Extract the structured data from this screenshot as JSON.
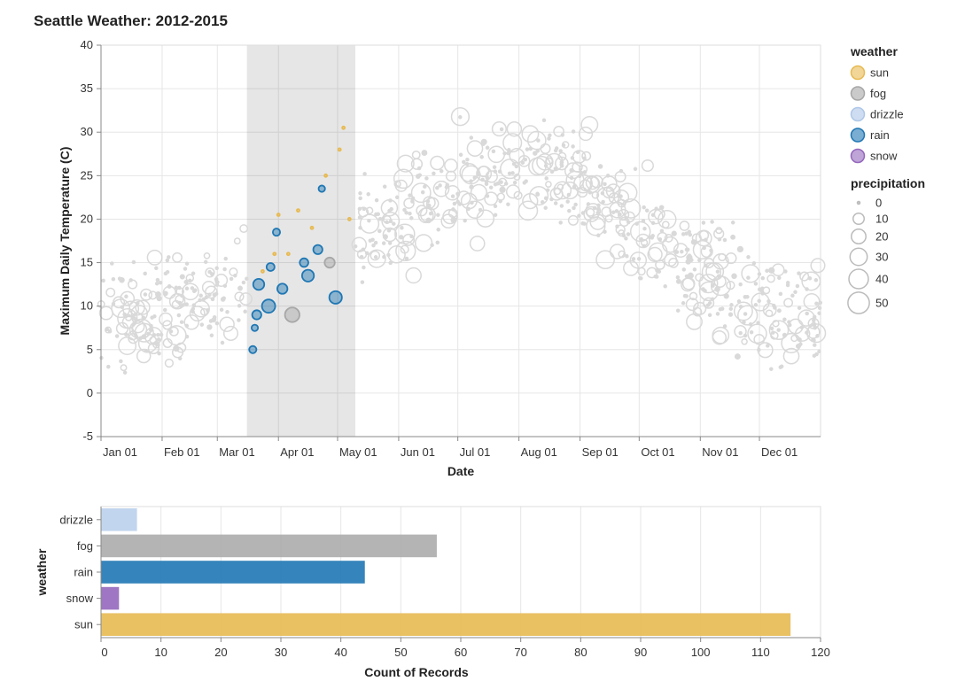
{
  "title": "Seattle Weather: 2012-2015",
  "chart_data": [
    {
      "type": "scatter",
      "xlabel": "Date",
      "ylabel": "Maximum Daily Temperature (C)",
      "ylim": [
        -5,
        40
      ],
      "yticks": [
        40,
        35,
        30,
        25,
        20,
        15,
        10,
        5,
        0,
        -5
      ],
      "xlim_day_of_year": [
        0,
        365
      ],
      "xticks": [
        {
          "label": "Jan 01",
          "day": 0
        },
        {
          "label": "Feb 01",
          "day": 31
        },
        {
          "label": "Mar 01",
          "day": 59
        },
        {
          "label": "Apr 01",
          "day": 90
        },
        {
          "label": "May 01",
          "day": 120
        },
        {
          "label": "Jun 01",
          "day": 151
        },
        {
          "label": "Jul 01",
          "day": 181
        },
        {
          "label": "Aug 01",
          "day": 212
        },
        {
          "label": "Sep 01",
          "day": 243
        },
        {
          "label": "Oct 01",
          "day": 273
        },
        {
          "label": "Nov 01",
          "day": 304
        },
        {
          "label": "Dec 01",
          "day": 334
        }
      ],
      "brush_selection_day_range": [
        74,
        129
      ],
      "unselected_color": "#d9d9d9",
      "seasonal_curve": [
        {
          "day": 0,
          "temp": 9
        },
        {
          "day": 31,
          "temp": 9.5
        },
        {
          "day": 59,
          "temp": 11.5
        },
        {
          "day": 90,
          "temp": 14
        },
        {
          "day": 120,
          "temp": 17
        },
        {
          "day": 151,
          "temp": 20
        },
        {
          "day": 181,
          "temp": 24
        },
        {
          "day": 212,
          "temp": 26.5
        },
        {
          "day": 243,
          "temp": 24.5
        },
        {
          "day": 273,
          "temp": 19
        },
        {
          "day": 304,
          "temp": 14
        },
        {
          "day": 334,
          "temp": 10
        },
        {
          "day": 365,
          "temp": 8.5
        }
      ],
      "highlighted_points": [
        {
          "day": 77,
          "temp": 5,
          "weather": "rain",
          "precipitation": 3
        },
        {
          "day": 78,
          "temp": 7.5,
          "weather": "rain",
          "precipitation": 2
        },
        {
          "day": 79,
          "temp": 9,
          "weather": "rain",
          "precipitation": 6
        },
        {
          "day": 80,
          "temp": 12.5,
          "weather": "rain",
          "precipitation": 10
        },
        {
          "day": 82,
          "temp": 14,
          "weather": "sun",
          "precipitation": 0
        },
        {
          "day": 85,
          "temp": 10,
          "weather": "rain",
          "precipitation": 16
        },
        {
          "day": 86,
          "temp": 14.5,
          "weather": "rain",
          "precipitation": 4
        },
        {
          "day": 88,
          "temp": 16,
          "weather": "sun",
          "precipitation": 0
        },
        {
          "day": 89,
          "temp": 18.5,
          "weather": "rain",
          "precipitation": 3
        },
        {
          "day": 90,
          "temp": 20.5,
          "weather": "sun",
          "precipitation": 0
        },
        {
          "day": 92,
          "temp": 12,
          "weather": "rain",
          "precipitation": 8
        },
        {
          "day": 95,
          "temp": 16,
          "weather": "sun",
          "precipitation": 0
        },
        {
          "day": 97,
          "temp": 9,
          "weather": "fog",
          "precipitation": 20
        },
        {
          "day": 100,
          "temp": 21,
          "weather": "sun",
          "precipitation": 0
        },
        {
          "day": 103,
          "temp": 15,
          "weather": "rain",
          "precipitation": 5
        },
        {
          "day": 105,
          "temp": 13.5,
          "weather": "rain",
          "precipitation": 12
        },
        {
          "day": 107,
          "temp": 19,
          "weather": "sun",
          "precipitation": 0
        },
        {
          "day": 110,
          "temp": 16.5,
          "weather": "rain",
          "precipitation": 6
        },
        {
          "day": 112,
          "temp": 23.5,
          "weather": "rain",
          "precipitation": 2
        },
        {
          "day": 114,
          "temp": 25,
          "weather": "sun",
          "precipitation": 0
        },
        {
          "day": 116,
          "temp": 15,
          "weather": "fog",
          "precipitation": 8
        },
        {
          "day": 119,
          "temp": 11,
          "weather": "rain",
          "precipitation": 14
        },
        {
          "day": 121,
          "temp": 28,
          "weather": "sun",
          "precipitation": 0
        },
        {
          "day": 123,
          "temp": 30.5,
          "weather": "sun",
          "precipitation": 0
        },
        {
          "day": 126,
          "temp": 20,
          "weather": "sun",
          "precipitation": 0
        }
      ]
    },
    {
      "type": "bar",
      "orientation": "horizontal",
      "categories": [
        "drizzle",
        "fog",
        "rain",
        "snow",
        "sun"
      ],
      "values": [
        6,
        56,
        44,
        3,
        115
      ],
      "xlabel": "Count of Records",
      "ylabel": "weather",
      "xlim": [
        0,
        120
      ],
      "xticks": [
        0,
        10,
        20,
        30,
        40,
        50,
        60,
        70,
        80,
        90,
        100,
        110,
        120
      ]
    }
  ],
  "legend": {
    "weather_title": "weather",
    "weather_items": [
      {
        "label": "sun",
        "color": "#e7ba52"
      },
      {
        "label": "fog",
        "color": "#a7a7a7"
      },
      {
        "label": "drizzle",
        "color": "#aec7e8"
      },
      {
        "label": "rain",
        "color": "#1f77b4"
      },
      {
        "label": "snow",
        "color": "#9467bd"
      }
    ],
    "precipitation_title": "precipitation",
    "precipitation_items": [
      0,
      10,
      20,
      30,
      40,
      50
    ]
  }
}
